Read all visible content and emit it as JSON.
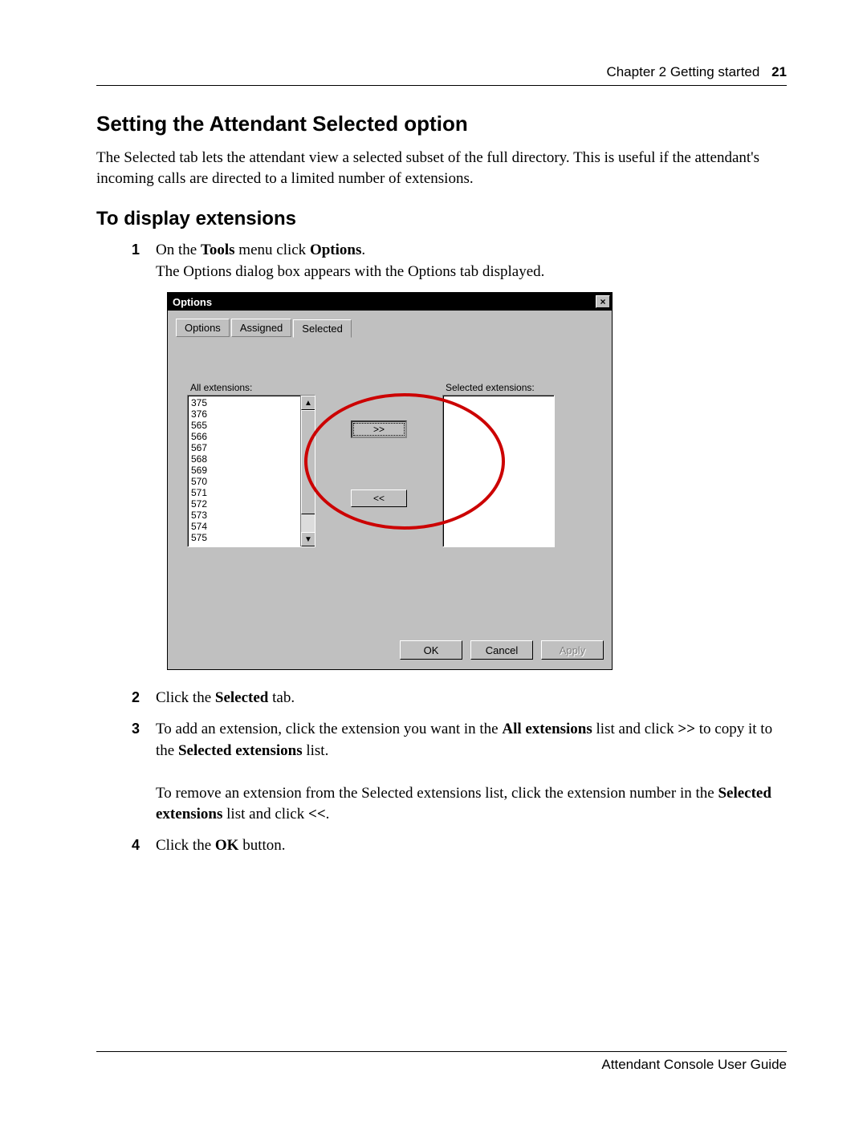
{
  "header": {
    "chapter": "Chapter 2  Getting started",
    "pagenum": "21"
  },
  "h1": "Setting the Attendant Selected option",
  "intro": "The Selected tab lets the attendant view a selected subset of the full directory. This is useful if the attendant's incoming calls are directed to a limited number of extensions.",
  "h2": "To display extensions",
  "steps": {
    "s1_a": "On the ",
    "s1_b": "Tools",
    "s1_c": " menu click ",
    "s1_d": "Options",
    "s1_e": ".",
    "s1_line2": "The Options dialog box appears with the Options tab displayed.",
    "s2_a": "Click the ",
    "s2_b": "Selected",
    "s2_c": " tab.",
    "s3_a": "To add an extension, click the extension you want in the ",
    "s3_b": "All extensions",
    "s3_c": " list and click ",
    "s3_sym1": ">>",
    "s3_d": " to copy it to the ",
    "s3_e": "Selected extensions",
    "s3_f": " list.",
    "s3_p2a": "To remove an extension from the Selected extensions list, click the extension number in the ",
    "s3_p2b": "Selected extensions",
    "s3_p2c": " list and click ",
    "s3_sym2": "<<",
    "s3_p2d": ".",
    "s4_a": "Click the ",
    "s4_b": "OK",
    "s4_c": " button."
  },
  "dialog": {
    "title": "Options",
    "tabs": {
      "t1": "Options",
      "t2": "Assigned",
      "t3": "Selected"
    },
    "label_all": "All extensions:",
    "label_sel": "Selected extensions:",
    "all_items": [
      "375",
      "376",
      "565",
      "566",
      "567",
      "568",
      "569",
      "570",
      "571",
      "572",
      "573",
      "574",
      "575"
    ],
    "btn_add": ">>",
    "btn_remove": "<<",
    "ok": "OK",
    "cancel": "Cancel",
    "apply": "Apply"
  },
  "footer": "Attendant Console User Guide",
  "style": {
    "ring_color": "#cc0000",
    "dialog_bg": "#c0c0c0",
    "titlebar_bg": "#000000",
    "titlebar_fg": "#ffffff"
  }
}
